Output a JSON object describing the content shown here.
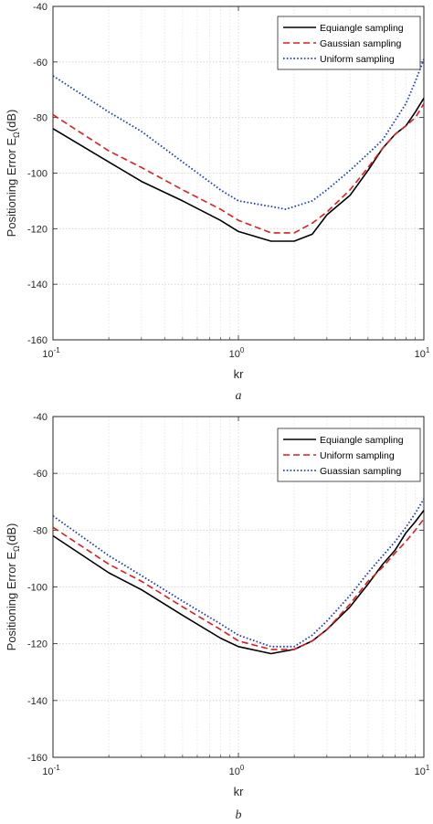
{
  "chart_data": [
    {
      "type": "line",
      "panel_label": "a",
      "xlabel": "kr",
      "ylabel": "Positioning Error E",
      "ylabel_sub": "Ω",
      "ylabel_unit": "(dB)",
      "x_scale": "log",
      "xlim": [
        0.1,
        10
      ],
      "ylim": [
        -160,
        -40
      ],
      "x_ticks": [
        {
          "value": 0.1,
          "base": "10",
          "exp": "-1"
        },
        {
          "value": 1,
          "base": "10",
          "exp": "0"
        },
        {
          "value": 10,
          "base": "10",
          "exp": "1"
        }
      ],
      "y_ticks": [
        -160,
        -140,
        -120,
        -100,
        -80,
        -60,
        -40
      ],
      "grid": true,
      "legend_position": "top-right",
      "series": [
        {
          "name": "Equiangle sampling",
          "color": "#000000",
          "style": "solid",
          "x": [
            0.1,
            0.2,
            0.3,
            0.5,
            0.8,
            1.0,
            1.5,
            2.0,
            2.5,
            3.0,
            4.0,
            5.0,
            6.0,
            7.0,
            8.0,
            9.0,
            10.0
          ],
          "y": [
            -84,
            -96,
            -103,
            -110,
            -117,
            -121,
            -124.5,
            -124.5,
            -122,
            -115,
            -108,
            -99,
            -91,
            -86,
            -83,
            -78,
            -73
          ]
        },
        {
          "name": "Gaussian sampling",
          "color": "#e31a1c",
          "style": "dashed",
          "x": [
            0.1,
            0.2,
            0.3,
            0.5,
            0.8,
            1.0,
            1.5,
            2.0,
            2.5,
            3.0,
            4.0,
            5.0,
            6.0,
            7.0,
            8.0,
            9.0,
            10.0
          ],
          "y": [
            -79,
            -92,
            -98,
            -106,
            -113,
            -117,
            -121.5,
            -121.5,
            -118,
            -114,
            -106,
            -98,
            -91,
            -86,
            -83,
            -80,
            -75
          ]
        },
        {
          "name": "Uniform sampling",
          "color": "#1f3fbf",
          "style": "dotted",
          "x": [
            0.1,
            0.2,
            0.3,
            0.5,
            0.8,
            1.0,
            1.5,
            1.8,
            2.5,
            3.0,
            4.0,
            5.0,
            6.0,
            7.0,
            8.0,
            9.0,
            10.0
          ],
          "y": [
            -65,
            -78,
            -85,
            -96,
            -106,
            -110,
            -112,
            -113,
            -110,
            -106,
            -99,
            -93,
            -88,
            -81,
            -75,
            -67,
            -59
          ]
        }
      ]
    },
    {
      "type": "line",
      "panel_label": "b",
      "xlabel": "kr",
      "ylabel": "Positioning Error E",
      "ylabel_sub": "Ω",
      "ylabel_unit": "(dB)",
      "x_scale": "log",
      "xlim": [
        0.1,
        10
      ],
      "ylim": [
        -160,
        -40
      ],
      "x_ticks": [
        {
          "value": 0.1,
          "base": "10",
          "exp": "-1"
        },
        {
          "value": 1,
          "base": "10",
          "exp": "0"
        },
        {
          "value": 10,
          "base": "10",
          "exp": "1"
        }
      ],
      "y_ticks": [
        -160,
        -140,
        -120,
        -100,
        -80,
        -60,
        -40
      ],
      "grid": true,
      "legend_position": "top-right",
      "series": [
        {
          "name": "Equiangle sampling",
          "color": "#000000",
          "style": "solid",
          "x": [
            0.1,
            0.2,
            0.3,
            0.5,
            0.8,
            1.0,
            1.5,
            2.0,
            2.5,
            3.0,
            4.0,
            5.0,
            6.0,
            7.0,
            8.0,
            9.0,
            10.0
          ],
          "y": [
            -82,
            -95,
            -101,
            -110,
            -118,
            -121,
            -123.5,
            -122,
            -119,
            -115,
            -107,
            -99,
            -92,
            -87,
            -81,
            -77,
            -73
          ]
        },
        {
          "name": "Uniform sampling",
          "color": "#e31a1c",
          "style": "dashed",
          "x": [
            0.1,
            0.2,
            0.3,
            0.5,
            0.8,
            1.0,
            1.5,
            2.0,
            2.5,
            3.0,
            4.0,
            5.0,
            6.0,
            7.0,
            8.0,
            9.0,
            10.0
          ],
          "y": [
            -79,
            -92,
            -98,
            -107,
            -115,
            -119,
            -122,
            -122,
            -119,
            -115,
            -106,
            -98,
            -93,
            -88,
            -84,
            -80,
            -76
          ]
        },
        {
          "name": "Guassian sampling",
          "color": "#1f3fbf",
          "style": "dotted",
          "x": [
            0.1,
            0.2,
            0.3,
            0.5,
            0.8,
            1.0,
            1.5,
            2.0,
            2.5,
            3.0,
            4.0,
            5.0,
            6.0,
            7.0,
            8.0,
            9.0,
            10.0
          ],
          "y": [
            -75,
            -89,
            -96,
            -105,
            -113,
            -117,
            -121,
            -121,
            -117,
            -112,
            -103,
            -95,
            -89,
            -84,
            -79,
            -74,
            -69
          ]
        }
      ]
    }
  ]
}
